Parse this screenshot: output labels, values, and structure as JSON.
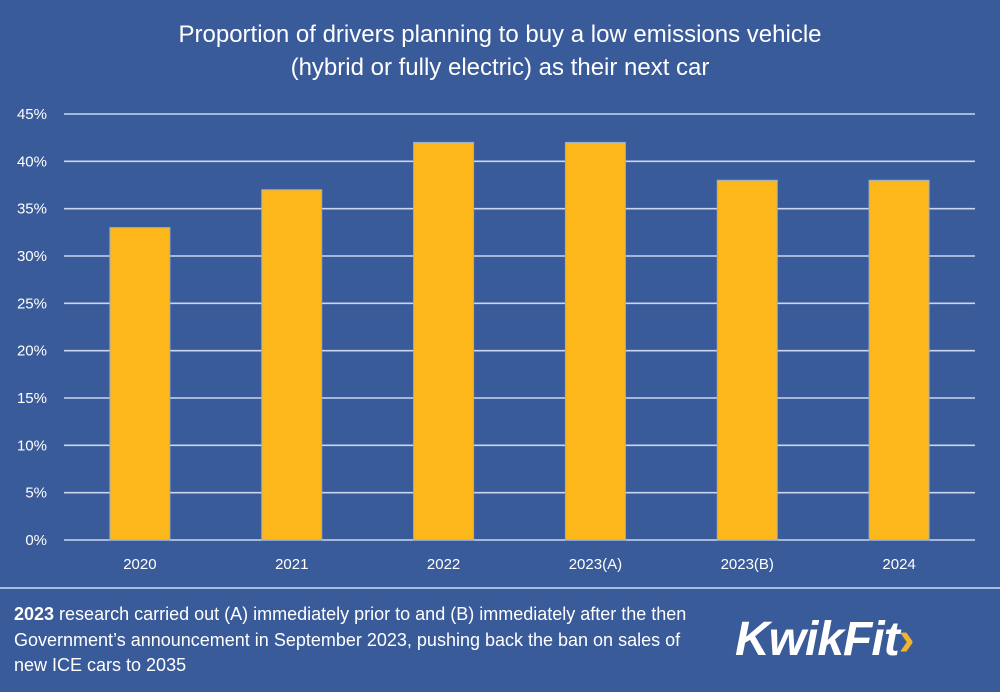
{
  "chart_data": {
    "type": "bar",
    "title": "Proportion of drivers planning to buy a low emissions vehicle (hybrid or fully electric) as their next car",
    "title_lines": [
      "Proportion of drivers planning to buy a low emissions vehicle",
      "(hybrid or fully electric) as their next car"
    ],
    "categories": [
      "2020",
      "2021",
      "2022",
      "2023(A)",
      "2023(B)",
      "2024"
    ],
    "values": [
      33,
      37,
      42,
      42,
      38,
      38
    ],
    "yticks": [
      "0%",
      "5%",
      "10%",
      "15%",
      "20%",
      "25%",
      "30%",
      "35%",
      "40%",
      "45%"
    ],
    "ylim": [
      0,
      45
    ],
    "grid": true,
    "bar_color": "#fdb71a",
    "background": "#3a5b9a"
  },
  "footnote": {
    "bold": "2023",
    "text": " research carried out (A) immediately prior to and (B) immediately after the then Government’s announcement in September 2023, pushing back the ban on sales of new ICE cars to 2035"
  },
  "logo": {
    "text": "KwikFit",
    "chevron": "›"
  }
}
